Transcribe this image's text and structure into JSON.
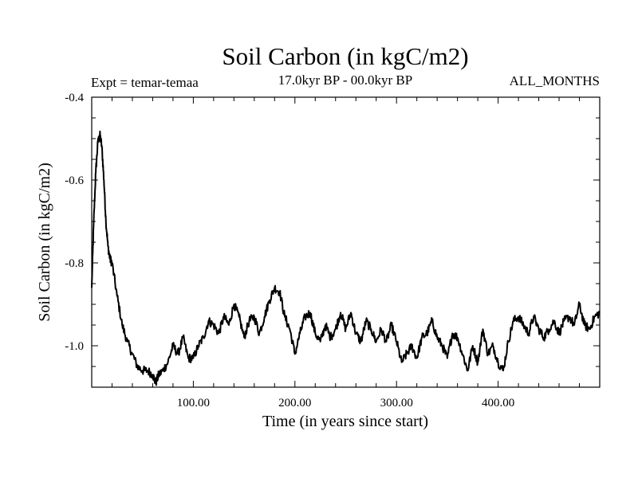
{
  "chart_data": {
    "type": "line",
    "title": "Soil Carbon (in kgC/m2)",
    "subtitle_left": "Expt = temar-temaa",
    "subtitle_center": "17.0kyr BP - 00.0kyr BP",
    "subtitle_right": "ALL_MONTHS",
    "xlabel": "Time (in years since start)",
    "ylabel": "Soil Carbon (in kgC/m2)",
    "xlim": [
      0,
      500
    ],
    "ylim": [
      -1.1,
      -0.4
    ],
    "xticks": [
      100,
      200,
      300,
      400
    ],
    "xtick_labels": [
      "100.00",
      "200.00",
      "300.00",
      "400.00"
    ],
    "yticks": [
      -1.0,
      -0.8,
      -0.6,
      -0.4
    ],
    "ytick_labels": [
      "-1.0",
      "-0.8",
      "-0.6",
      "-0.4"
    ],
    "grid": false,
    "series": [
      {
        "name": "Soil Carbon",
        "x": [
          0,
          2,
          4,
          6,
          8,
          10,
          12,
          14,
          16,
          18,
          20,
          25,
          30,
          35,
          40,
          45,
          50,
          55,
          60,
          63,
          66,
          70,
          75,
          80,
          85,
          90,
          95,
          100,
          105,
          110,
          115,
          120,
          125,
          130,
          135,
          140,
          145,
          150,
          155,
          160,
          165,
          170,
          175,
          180,
          185,
          190,
          195,
          200,
          205,
          210,
          215,
          220,
          225,
          230,
          235,
          240,
          245,
          250,
          255,
          260,
          265,
          270,
          275,
          280,
          285,
          290,
          295,
          300,
          305,
          310,
          315,
          320,
          325,
          330,
          335,
          340,
          345,
          350,
          355,
          360,
          365,
          370,
          375,
          380,
          385,
          390,
          395,
          400,
          405,
          410,
          415,
          420,
          425,
          430,
          435,
          440,
          445,
          450,
          455,
          460,
          465,
          470,
          475,
          480,
          485,
          490,
          495,
          500
        ],
        "y": [
          -0.86,
          -0.7,
          -0.58,
          -0.51,
          -0.49,
          -0.52,
          -0.6,
          -0.7,
          -0.76,
          -0.79,
          -0.8,
          -0.88,
          -0.95,
          -0.99,
          -1.02,
          -1.05,
          -1.06,
          -1.06,
          -1.07,
          -1.09,
          -1.07,
          -1.06,
          -1.04,
          -1.0,
          -1.02,
          -0.98,
          -1.03,
          -1.03,
          -1.0,
          -0.98,
          -0.94,
          -0.95,
          -0.97,
          -0.93,
          -0.95,
          -0.9,
          -0.93,
          -0.98,
          -0.94,
          -0.93,
          -0.97,
          -0.93,
          -0.89,
          -0.86,
          -0.87,
          -0.93,
          -0.96,
          -1.02,
          -0.97,
          -0.93,
          -0.92,
          -0.97,
          -0.99,
          -0.95,
          -0.98,
          -0.96,
          -0.92,
          -0.96,
          -0.92,
          -0.97,
          -0.99,
          -0.94,
          -0.96,
          -0.99,
          -0.96,
          -0.99,
          -0.95,
          -0.99,
          -1.04,
          -1.02,
          -1.0,
          -1.03,
          -0.98,
          -0.97,
          -0.94,
          -0.98,
          -1.0,
          -1.03,
          -0.97,
          -0.98,
          -1.02,
          -1.06,
          -1.0,
          -1.04,
          -0.96,
          -1.02,
          -1.0,
          -1.04,
          -1.06,
          -0.99,
          -0.94,
          -0.93,
          -0.95,
          -0.97,
          -0.93,
          -0.96,
          -0.98,
          -0.96,
          -0.94,
          -0.97,
          -0.94,
          -0.93,
          -0.95,
          -0.9,
          -0.95,
          -0.96,
          -0.93,
          -0.92
        ]
      }
    ]
  }
}
